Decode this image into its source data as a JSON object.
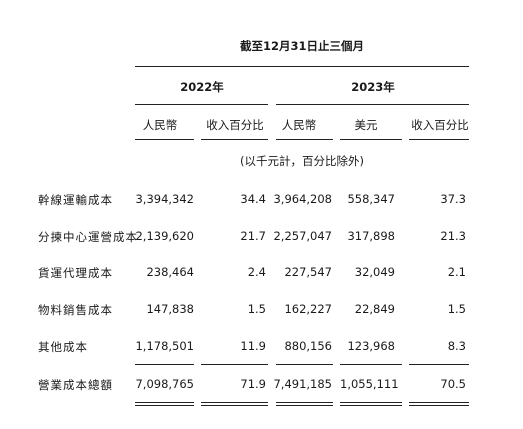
{
  "title": "截至12月31日止三個月",
  "groups": {
    "y2022": "2022年",
    "y2023": "2023年"
  },
  "columns": [
    "人民幣",
    "收入百分比",
    "人民幣",
    "美元",
    "收入百分比"
  ],
  "unit_note": "(以千元計，百分比除外)",
  "rows": [
    {
      "label": "幹線運輸成本",
      "rmb2022": "3,394,342",
      "pct2022": "34.4",
      "rmb2023": "3,964,208",
      "usd2023": "558,347",
      "pct2023": "37.3"
    },
    {
      "label": "分揀中心運營成本",
      "rmb2022": "2,139,620",
      "pct2022": "21.7",
      "rmb2023": "2,257,047",
      "usd2023": "317,898",
      "pct2023": "21.3"
    },
    {
      "label": "貨運代理成本",
      "rmb2022": "238,464",
      "pct2022": "2.4",
      "rmb2023": "227,547",
      "usd2023": "32,049",
      "pct2023": "2.1"
    },
    {
      "label": "物料銷售成本",
      "rmb2022": "147,838",
      "pct2022": "1.5",
      "rmb2023": "162,227",
      "usd2023": "22,849",
      "pct2023": "1.5"
    },
    {
      "label": "其他成本",
      "rmb2022": "1,178,501",
      "pct2022": "11.9",
      "rmb2023": "880,156",
      "usd2023": "123,968",
      "pct2023": "8.3"
    }
  ],
  "total": {
    "label": "營業成本總額",
    "rmb2022": "7,098,765",
    "pct2022": "71.9",
    "rmb2023": "7,491,185",
    "usd2023": "1,055,111",
    "pct2023": "70.5"
  }
}
